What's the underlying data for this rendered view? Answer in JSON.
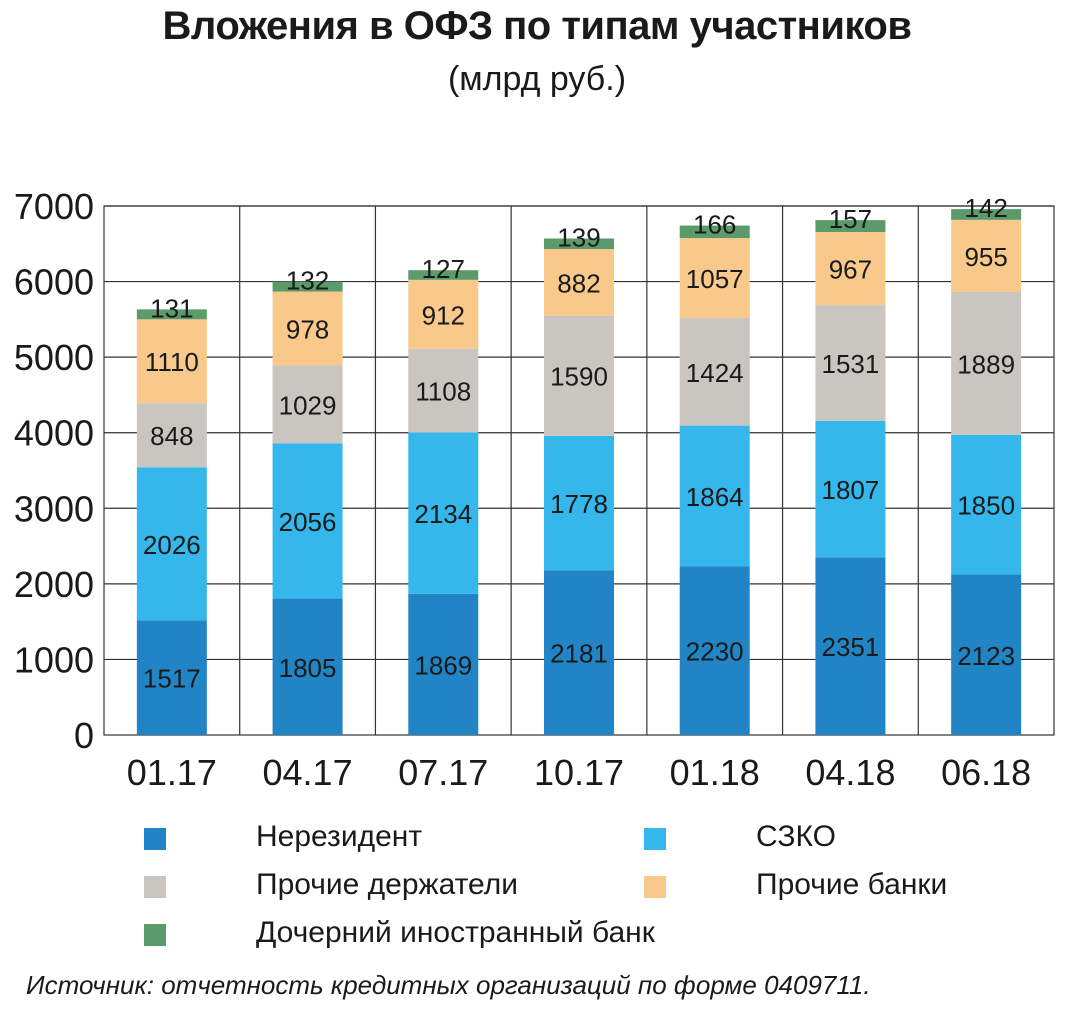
{
  "chart_data": {
    "type": "bar",
    "stacked": true,
    "title": "Вложения в ОФЗ по типам участников",
    "subtitle": "(млрд руб.)",
    "categories": [
      "01.17",
      "04.17",
      "07.17",
      "10.17",
      "01.18",
      "04.18",
      "06.18"
    ],
    "series": [
      {
        "name": "Нерезидент",
        "color": "#2185c5",
        "values": [
          1517,
          1805,
          1869,
          2181,
          2230,
          2351,
          2123
        ]
      },
      {
        "name": "СЗКО",
        "color": "#35b7ec",
        "values": [
          2026,
          2056,
          2134,
          1778,
          1864,
          1807,
          1850
        ]
      },
      {
        "name": "Прочие держатели",
        "color": "#c9c6c1",
        "values": [
          848,
          1029,
          1108,
          1590,
          1424,
          1531,
          1889
        ]
      },
      {
        "name": "Прочие банки",
        "color": "#f8c98a",
        "values": [
          1110,
          978,
          912,
          882,
          1057,
          967,
          955
        ]
      },
      {
        "name": "Дочерний иностранный банк",
        "color": "#5b9a6b",
        "values": [
          131,
          132,
          127,
          139,
          166,
          157,
          142
        ]
      }
    ],
    "ylim": [
      0,
      7000
    ],
    "yticks": [
      0,
      1000,
      2000,
      3000,
      4000,
      5000,
      6000,
      7000
    ],
    "grid": true,
    "legend_position": "bottom"
  },
  "source": "Источник: отчетность кредитных организаций по форме 0409711."
}
